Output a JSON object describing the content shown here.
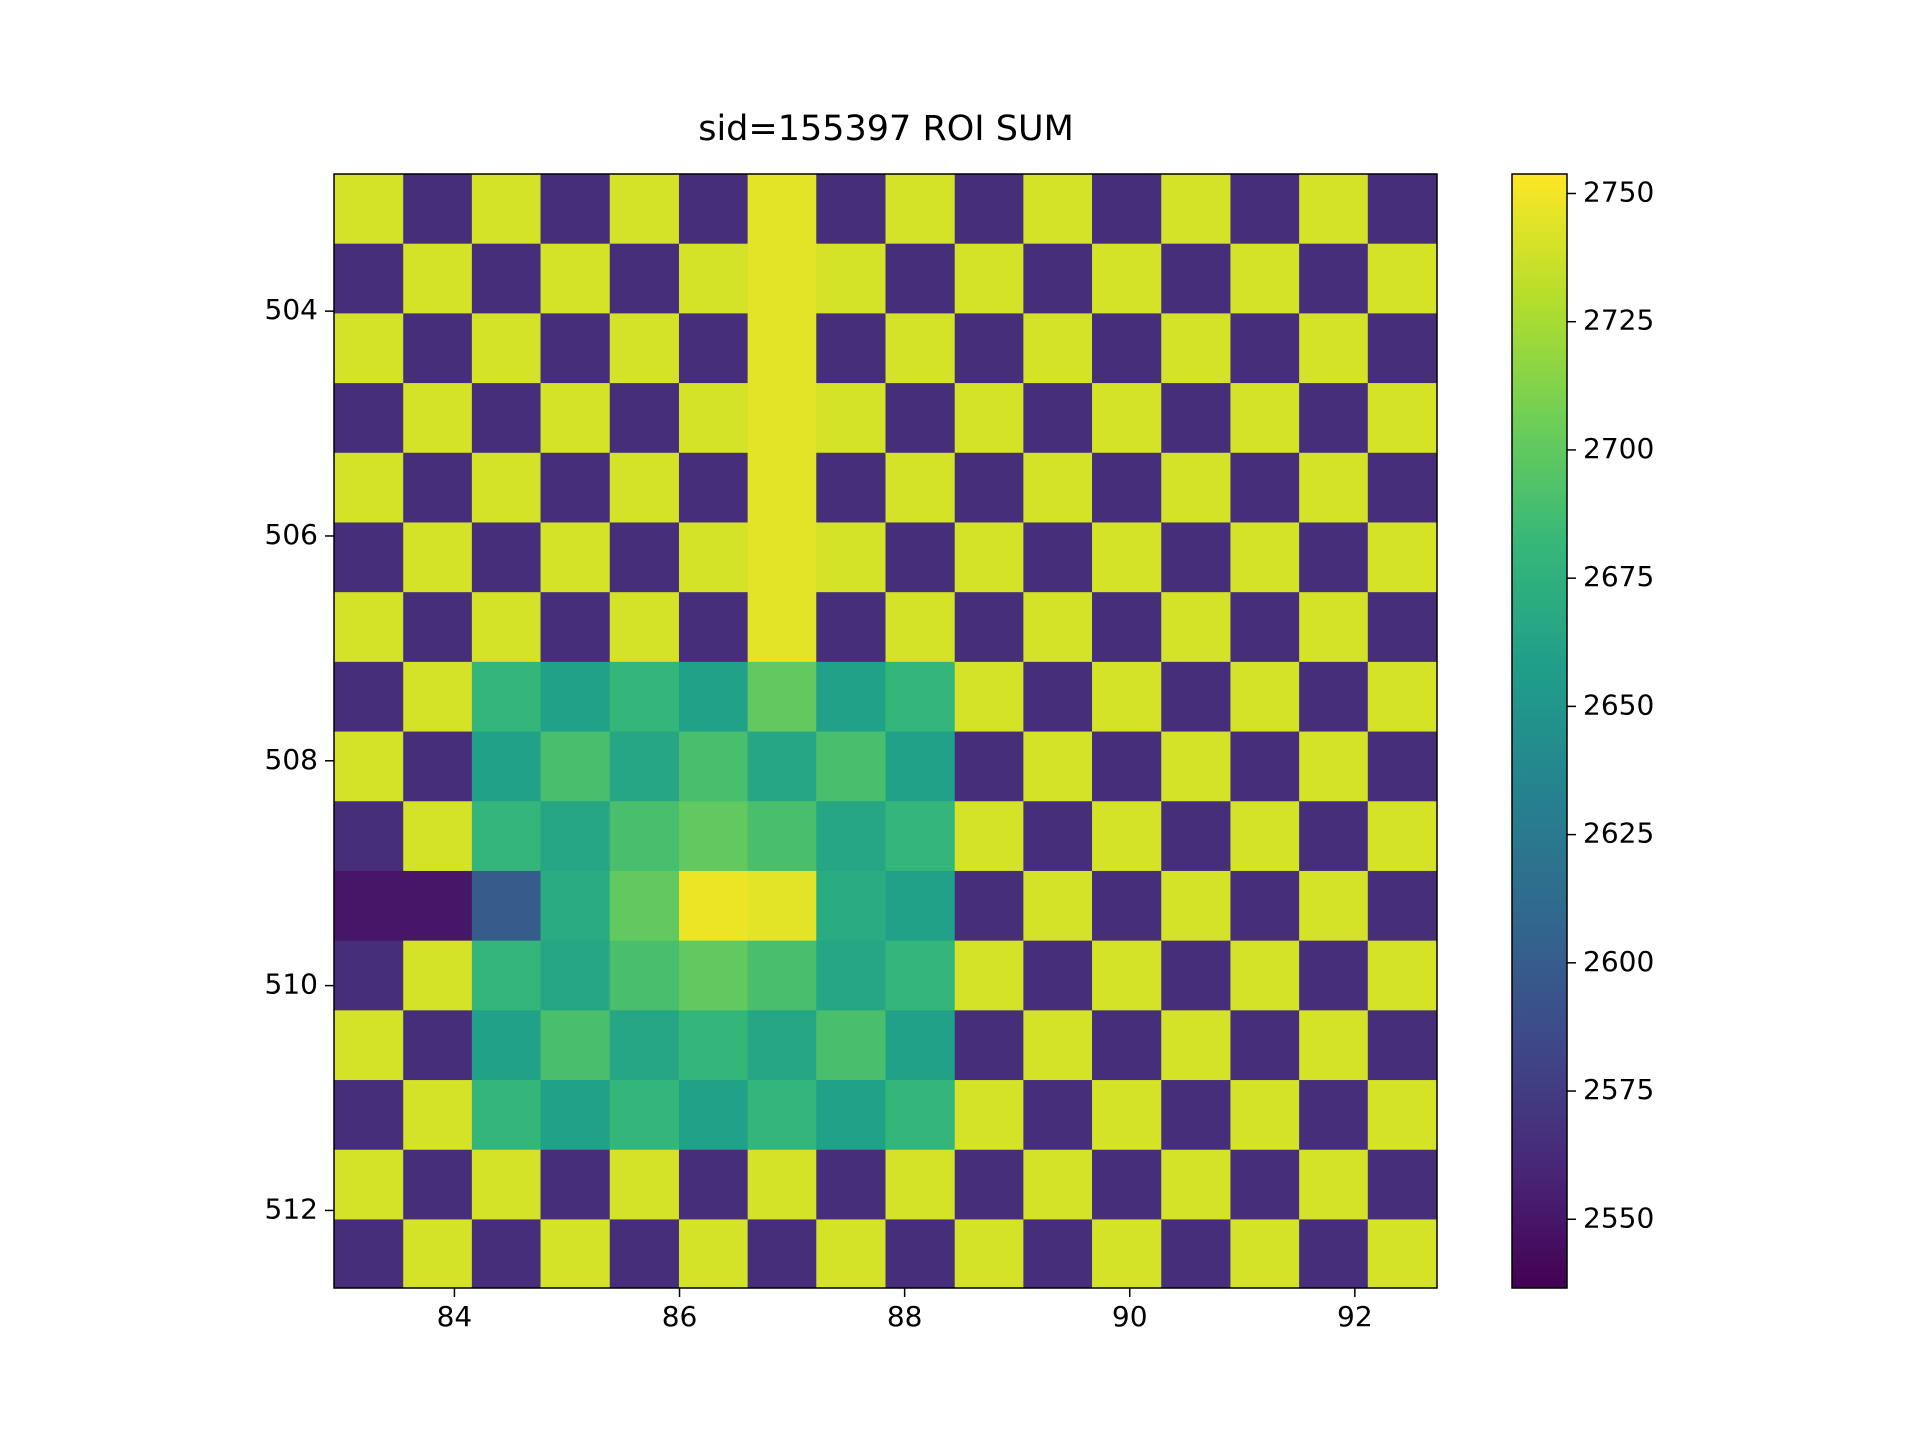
{
  "chart_data": {
    "type": "heatmap",
    "title": "sid=155397 ROI SUM",
    "x": [
      83.24,
      83.85,
      84.46,
      85.07,
      85.69,
      86.3,
      86.91,
      87.52,
      88.14,
      88.75,
      89.36,
      89.97,
      90.59,
      91.2,
      91.81,
      92.42
    ],
    "y": [
      503.09,
      503.71,
      504.33,
      504.95,
      505.57,
      506.19,
      506.81,
      507.43,
      508.05,
      508.67,
      509.29,
      509.91,
      510.53,
      511.15,
      511.77,
      512.39
    ],
    "values": [
      [
        2740,
        2565,
        2740,
        2565,
        2740,
        2565,
        2745,
        2565,
        2740,
        2565,
        2740,
        2565,
        2740,
        2565,
        2740,
        2565
      ],
      [
        2565,
        2740,
        2565,
        2740,
        2565,
        2740,
        2745,
        2740,
        2565,
        2740,
        2565,
        2740,
        2565,
        2740,
        2565,
        2740
      ],
      [
        2740,
        2565,
        2740,
        2565,
        2740,
        2565,
        2745,
        2565,
        2740,
        2565,
        2740,
        2565,
        2740,
        2565,
        2740,
        2565
      ],
      [
        2565,
        2740,
        2565,
        2740,
        2565,
        2740,
        2745,
        2740,
        2565,
        2740,
        2565,
        2740,
        2565,
        2740,
        2565,
        2740
      ],
      [
        2740,
        2565,
        2740,
        2565,
        2740,
        2565,
        2745,
        2565,
        2740,
        2565,
        2740,
        2565,
        2740,
        2565,
        2740,
        2565
      ],
      [
        2565,
        2740,
        2565,
        2740,
        2565,
        2740,
        2745,
        2740,
        2565,
        2740,
        2565,
        2740,
        2565,
        2740,
        2565,
        2740
      ],
      [
        2740,
        2565,
        2740,
        2565,
        2740,
        2565,
        2745,
        2565,
        2740,
        2565,
        2740,
        2565,
        2740,
        2565,
        2740,
        2565
      ],
      [
        2565,
        2740,
        2680,
        2660,
        2680,
        2660,
        2700,
        2660,
        2680,
        2740,
        2565,
        2740,
        2565,
        2740,
        2565,
        2740
      ],
      [
        2740,
        2565,
        2660,
        2690,
        2665,
        2690,
        2665,
        2690,
        2660,
        2565,
        2740,
        2565,
        2740,
        2565,
        2740,
        2565
      ],
      [
        2565,
        2740,
        2680,
        2665,
        2690,
        2700,
        2690,
        2665,
        2680,
        2740,
        2565,
        2740,
        2565,
        2740,
        2565,
        2740
      ],
      [
        2550,
        2550,
        2600,
        2670,
        2700,
        2748,
        2745,
        2670,
        2660,
        2565,
        2740,
        2565,
        2740,
        2565,
        2740,
        2565
      ],
      [
        2565,
        2740,
        2680,
        2665,
        2690,
        2700,
        2690,
        2665,
        2680,
        2740,
        2565,
        2740,
        2565,
        2740,
        2565,
        2740
      ],
      [
        2740,
        2565,
        2660,
        2690,
        2665,
        2680,
        2665,
        2690,
        2660,
        2565,
        2740,
        2565,
        2740,
        2565,
        2740,
        2565
      ],
      [
        2565,
        2740,
        2680,
        2660,
        2680,
        2660,
        2680,
        2660,
        2680,
        2740,
        2565,
        2740,
        2565,
        2740,
        2565,
        2740
      ],
      [
        2740,
        2565,
        2740,
        2565,
        2740,
        2565,
        2740,
        2565,
        2740,
        2565,
        2740,
        2565,
        2740,
        2565,
        2740,
        2565
      ],
      [
        2565,
        2740,
        2565,
        2740,
        2565,
        2740,
        2565,
        2740,
        2565,
        2740,
        2565,
        2740,
        2565,
        2740,
        2565,
        2740
      ]
    ],
    "xlim": [
      82.93,
      92.73
    ],
    "ylim": [
      502.78,
      512.69
    ],
    "xticks": [
      84,
      86,
      88,
      90,
      92
    ],
    "yticks": [
      504,
      506,
      508,
      510,
      512
    ],
    "clim": [
      2536.6,
      2753.8
    ],
    "cticks": [
      2550,
      2575,
      2600,
      2625,
      2650,
      2675,
      2700,
      2725,
      2750
    ],
    "colormap": [
      "#440154",
      "#482878",
      "#3e4989",
      "#31688e",
      "#26828e",
      "#1f9e89",
      "#35b779",
      "#6ece58",
      "#b5de2b",
      "#fde725"
    ]
  }
}
